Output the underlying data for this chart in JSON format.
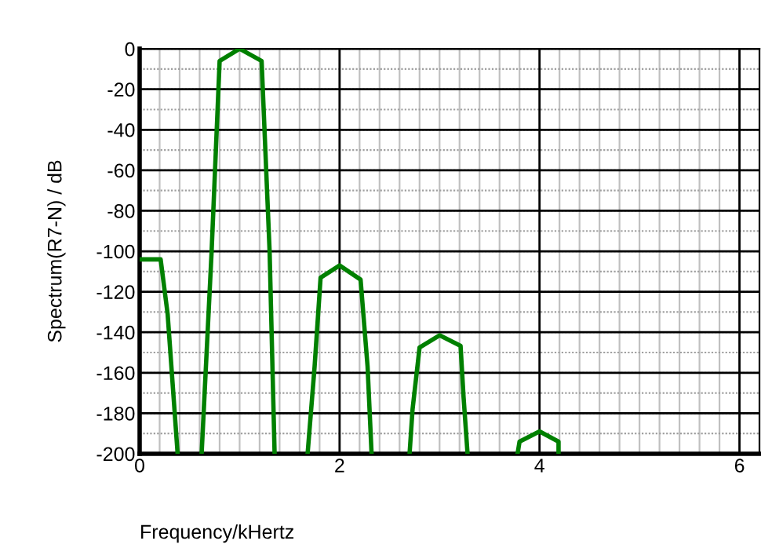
{
  "chart_data": {
    "type": "line",
    "xlabel": "Frequency/kHertz",
    "ylabel": "Spectrum(R7-N) / dB",
    "x": [
      0,
      0.21,
      0.28,
      0.38,
      null,
      0.62,
      0.72,
      0.8,
      1.0,
      1.22,
      1.3,
      1.35,
      null,
      1.68,
      1.75,
      1.81,
      2.0,
      2.21,
      2.28,
      2.32,
      null,
      2.7,
      2.73,
      2.8,
      3.0,
      3.21,
      3.24,
      3.28,
      null,
      3.78,
      3.8,
      4.0,
      4.19,
      4.19
    ],
    "series": [
      {
        "color": "#008000",
        "values": [
          -104,
          -104,
          -131,
          -200,
          null,
          -200,
          -100,
          -6,
          0,
          -6,
          -100,
          -200,
          null,
          -200,
          -157,
          -113,
          -107,
          -114,
          -157,
          -200,
          null,
          -200,
          -178,
          -147.5,
          -141.5,
          -146.7,
          -172,
          -200,
          null,
          -200,
          -194,
          -189,
          -194,
          -200
        ]
      }
    ],
    "xlim": [
      0,
      6.2
    ],
    "ylim": [
      -200,
      0
    ],
    "xticks": [
      0,
      2,
      4,
      6
    ],
    "yticks": [
      -200,
      -180,
      -160,
      -140,
      -120,
      -100,
      -80,
      -60,
      -40,
      -20,
      0
    ],
    "grid": true,
    "marker": "none",
    "line_style": "solid"
  }
}
